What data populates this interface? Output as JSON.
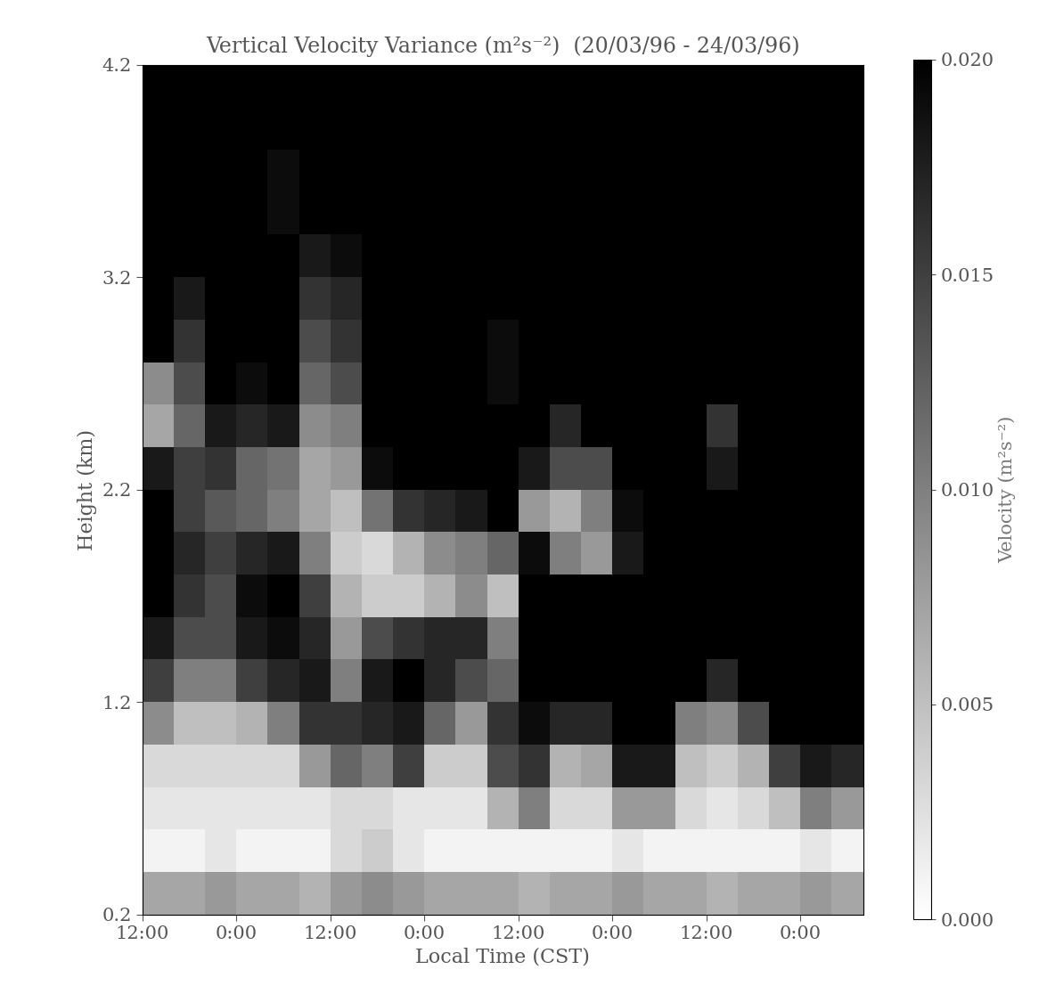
{
  "chart_data": {
    "type": "heatmap",
    "title": "Vertical Velocity Variance (m²s⁻²)  (20/03/96 - 24/03/96)",
    "x_label": "Local Time (CST)",
    "y_label": "Height (km)",
    "xlim": [
      0,
      92
    ],
    "xticks": [
      {
        "value": 0,
        "label": "12:00"
      },
      {
        "value": 12,
        "label": "0:00"
      },
      {
        "value": 24,
        "label": "12:00"
      },
      {
        "value": 36,
        "label": "0:00"
      },
      {
        "value": 48,
        "label": "12:00"
      },
      {
        "value": 60,
        "label": "0:00"
      },
      {
        "value": 72,
        "label": "12:00"
      },
      {
        "value": 84,
        "label": "0:00"
      }
    ],
    "ylim": [
      0.2,
      4.2
    ],
    "yticks": [
      0.2,
      1.2,
      2.2,
      3.2,
      4.2
    ],
    "x_edges": [
      0,
      4,
      8,
      12,
      16,
      20,
      24,
      28,
      32,
      36,
      40,
      44,
      48,
      52,
      56,
      60,
      64,
      68,
      72,
      76,
      80,
      84,
      88,
      92
    ],
    "y_edges": [
      0.2,
      0.4,
      0.6,
      0.8,
      1.0,
      1.2,
      1.4,
      1.6,
      1.8,
      2.0,
      2.2,
      2.4,
      2.6,
      2.8,
      3.0,
      3.2,
      3.4,
      3.6,
      3.8,
      4.0,
      4.2
    ],
    "cells": [
      [
        0.007,
        0.007,
        0.008,
        0.007,
        0.007,
        0.006,
        0.008,
        0.009,
        0.008,
        0.007,
        0.007,
        0.007,
        0.006,
        0.007,
        0.007,
        0.008,
        0.007,
        0.007,
        0.006,
        0.007,
        0.007,
        0.008,
        0.007
      ],
      [
        0.001,
        0.001,
        0.002,
        0.001,
        0.001,
        0.001,
        0.003,
        0.004,
        0.002,
        0.001,
        0.001,
        0.001,
        0.001,
        0.001,
        0.001,
        0.002,
        0.001,
        0.001,
        0.001,
        0.001,
        0.001,
        0.002,
        0.001
      ],
      [
        0.002,
        0.002,
        0.002,
        0.002,
        0.002,
        0.002,
        0.003,
        0.003,
        0.002,
        0.002,
        0.002,
        0.006,
        0.01,
        0.003,
        0.003,
        0.008,
        0.008,
        0.003,
        0.002,
        0.003,
        0.005,
        0.01,
        0.008
      ],
      [
        0.003,
        0.003,
        0.003,
        0.003,
        0.003,
        0.008,
        0.012,
        0.01,
        0.015,
        0.004,
        0.004,
        0.014,
        0.016,
        0.006,
        0.007,
        0.018,
        0.018,
        0.005,
        0.004,
        0.006,
        0.015,
        0.018,
        0.017
      ],
      [
        0.009,
        0.005,
        0.005,
        0.006,
        0.01,
        0.016,
        0.016,
        0.017,
        0.018,
        0.012,
        0.008,
        0.016,
        0.019,
        0.017,
        0.017,
        0.02,
        0.02,
        0.01,
        0.009,
        0.014,
        0.02,
        0.02,
        0.02
      ],
      [
        0.015,
        0.01,
        0.01,
        0.015,
        0.017,
        0.018,
        0.01,
        0.018,
        0.02,
        0.017,
        0.014,
        0.012,
        0.02,
        0.02,
        0.02,
        0.02,
        0.02,
        0.02,
        0.017,
        0.02,
        0.02,
        0.02,
        0.02
      ],
      [
        0.018,
        0.014,
        0.014,
        0.018,
        0.019,
        0.017,
        0.008,
        0.014,
        0.016,
        0.017,
        0.017,
        0.01,
        0.02,
        0.02,
        0.02,
        0.02,
        0.02,
        0.02,
        0.02,
        0.02,
        0.02,
        0.02,
        0.02
      ],
      [
        0.02,
        0.016,
        0.014,
        0.019,
        0.02,
        0.015,
        0.006,
        0.004,
        0.004,
        0.006,
        0.009,
        0.005,
        0.02,
        0.02,
        0.02,
        0.02,
        0.02,
        0.02,
        0.02,
        0.02,
        0.02,
        0.02,
        0.02
      ],
      [
        0.02,
        0.017,
        0.015,
        0.017,
        0.018,
        0.01,
        0.004,
        0.003,
        0.006,
        0.009,
        0.01,
        0.012,
        0.019,
        0.01,
        0.008,
        0.018,
        0.02,
        0.02,
        0.02,
        0.02,
        0.02,
        0.02,
        0.02
      ],
      [
        0.02,
        0.015,
        0.013,
        0.012,
        0.01,
        0.007,
        0.005,
        0.011,
        0.016,
        0.017,
        0.018,
        0.02,
        0.008,
        0.006,
        0.01,
        0.019,
        0.02,
        0.02,
        0.02,
        0.02,
        0.02,
        0.02,
        0.02
      ],
      [
        0.018,
        0.015,
        0.016,
        0.012,
        0.011,
        0.007,
        0.008,
        0.019,
        0.02,
        0.02,
        0.02,
        0.02,
        0.018,
        0.014,
        0.014,
        0.02,
        0.02,
        0.02,
        0.018,
        0.02,
        0.02,
        0.02,
        0.02
      ],
      [
        0.007,
        0.012,
        0.018,
        0.017,
        0.018,
        0.009,
        0.01,
        0.02,
        0.02,
        0.02,
        0.02,
        0.02,
        0.02,
        0.017,
        0.02,
        0.02,
        0.02,
        0.02,
        0.016,
        0.02,
        0.02,
        0.02,
        0.02
      ],
      [
        0.009,
        0.014,
        0.02,
        0.019,
        0.02,
        0.012,
        0.014,
        0.02,
        0.02,
        0.02,
        0.02,
        0.019,
        0.02,
        0.02,
        0.02,
        0.02,
        0.02,
        0.02,
        0.02,
        0.02,
        0.02,
        0.02,
        0.02
      ],
      [
        0.02,
        0.016,
        0.02,
        0.02,
        0.02,
        0.014,
        0.016,
        0.02,
        0.02,
        0.02,
        0.02,
        0.019,
        0.02,
        0.02,
        0.02,
        0.02,
        0.02,
        0.02,
        0.02,
        0.02,
        0.02,
        0.02,
        0.02
      ],
      [
        0.02,
        0.018,
        0.02,
        0.02,
        0.02,
        0.016,
        0.017,
        0.02,
        0.02,
        0.02,
        0.02,
        0.02,
        0.02,
        0.02,
        0.02,
        0.02,
        0.02,
        0.02,
        0.02,
        0.02,
        0.02,
        0.02,
        0.02
      ],
      [
        0.02,
        0.02,
        0.02,
        0.02,
        0.02,
        0.018,
        0.019,
        0.02,
        0.02,
        0.02,
        0.02,
        0.02,
        0.02,
        0.02,
        0.02,
        0.02,
        0.02,
        0.02,
        0.02,
        0.02,
        0.02,
        0.02,
        0.02
      ],
      [
        0.02,
        0.02,
        0.02,
        0.02,
        0.019,
        0.02,
        0.02,
        0.02,
        0.02,
        0.02,
        0.02,
        0.02,
        0.02,
        0.02,
        0.02,
        0.02,
        0.02,
        0.02,
        0.02,
        0.02,
        0.02,
        0.02,
        0.02
      ],
      [
        0.02,
        0.02,
        0.02,
        0.02,
        0.019,
        0.02,
        0.02,
        0.02,
        0.02,
        0.02,
        0.02,
        0.02,
        0.02,
        0.02,
        0.02,
        0.02,
        0.02,
        0.02,
        0.02,
        0.02,
        0.02,
        0.02,
        0.02
      ],
      [
        0.02,
        0.02,
        0.02,
        0.02,
        0.02,
        0.02,
        0.02,
        0.02,
        0.02,
        0.02,
        0.02,
        0.02,
        0.02,
        0.02,
        0.02,
        0.02,
        0.02,
        0.02,
        0.02,
        0.02,
        0.02,
        0.02,
        0.02
      ],
      [
        0.02,
        0.02,
        0.02,
        0.02,
        0.02,
        0.02,
        0.02,
        0.02,
        0.02,
        0.02,
        0.02,
        0.02,
        0.02,
        0.02,
        0.02,
        0.02,
        0.02,
        0.02,
        0.02,
        0.02,
        0.02,
        0.02,
        0.02
      ]
    ],
    "colorbar": {
      "label": "Velocity (m²s⁻²)",
      "range": [
        0,
        0.02
      ],
      "ticks": [
        {
          "value": 0,
          "label": "0.000"
        },
        {
          "value": 0.005,
          "label": "0.005"
        },
        {
          "value": 0.01,
          "label": "0.010"
        },
        {
          "value": 0.015,
          "label": "0.015"
        },
        {
          "value": 0.02,
          "label": "0.020"
        }
      ]
    }
  }
}
